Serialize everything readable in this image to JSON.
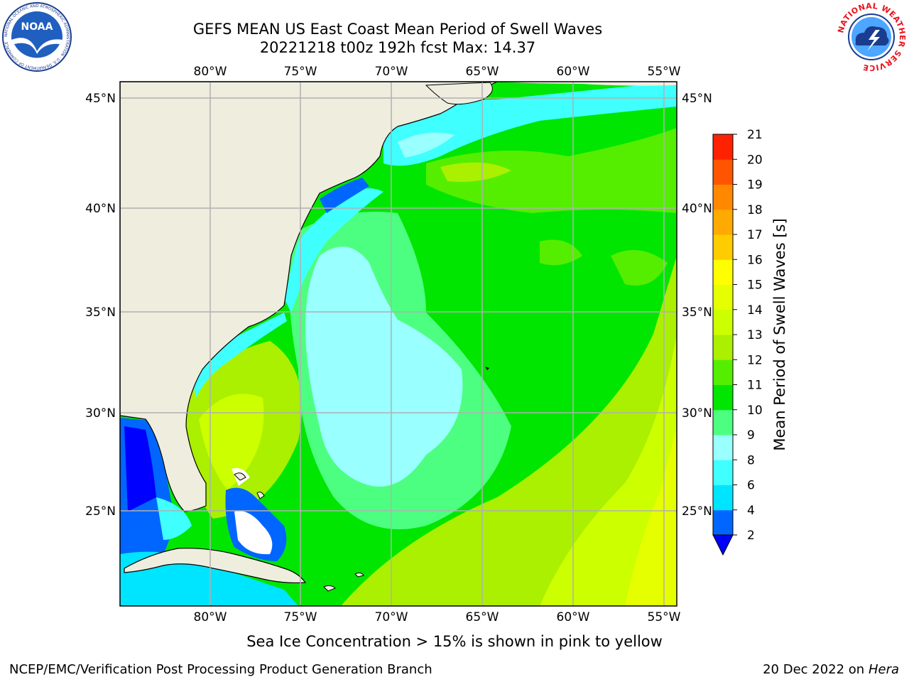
{
  "title": {
    "line1": "GEFS MEAN US East Coast Mean Period of Swell Waves",
    "line2": "20221218 t00z 192h fcst   Max: 14.37"
  },
  "map": {
    "lon_labels": [
      "80°W",
      "75°W",
      "70°W",
      "65°W",
      "60°W",
      "55°W"
    ],
    "lat_labels": [
      "45°N",
      "40°N",
      "35°N",
      "30°N",
      "25°N"
    ],
    "land_color": "#efedde",
    "grid_color": "#b0b0b0"
  },
  "colorbar": {
    "label": "Mean Period of Swell Waves [s]",
    "ticks": [
      "2",
      "4",
      "6",
      "8",
      "9",
      "10",
      "11",
      "12",
      "13",
      "14",
      "15",
      "16",
      "17",
      "18",
      "19",
      "20",
      "21"
    ],
    "colors": [
      "#0066ff",
      "#00e5ff",
      "#40ffff",
      "#99ffff",
      "#4dff80",
      "#00e600",
      "#55ee00",
      "#aaf000",
      "#ccff00",
      "#e6ff00",
      "#ffff00",
      "#ffcc00",
      "#ffaa00",
      "#ff8800",
      "#ff5500",
      "#ff2200"
    ],
    "under_color": "#0000ff"
  },
  "sea_ice_note": "Sea Ice Concentration > 15% is shown in pink to yellow",
  "footer": {
    "left": "NCEP/EMC/Verification Post Processing Product Generation Branch",
    "date": "20 Dec 2022 on",
    "host": "Hera"
  },
  "logos": {
    "noaa_text": "NOAA",
    "noaa_ring": "NATIONAL OCEANIC AND ATMOSPHERIC ADMINISTRATION · U.S. DEPARTMENT OF COMMERCE",
    "nws_ring": "NATIONAL WEATHER SERVICE"
  }
}
